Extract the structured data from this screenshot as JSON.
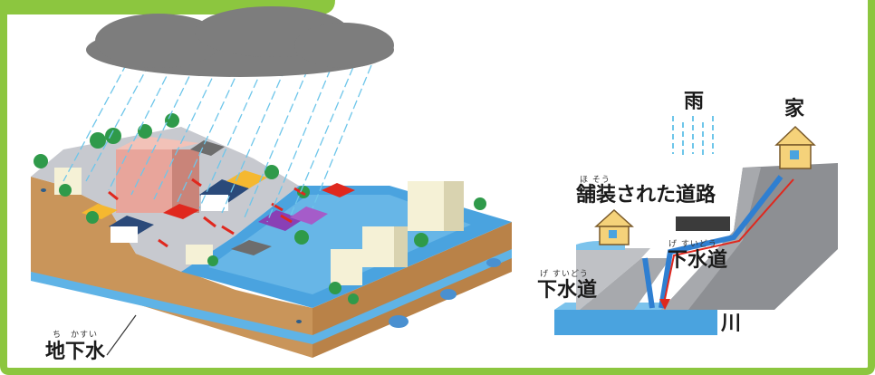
{
  "colors": {
    "frame_green": "#8cc63f",
    "cloud": "#7d7d7d",
    "rain": "#6ec6ea",
    "soil": "#c9955a",
    "water": "#4aa3df",
    "flow_arrow": "#e0281e",
    "pipe": "#2f7fd1"
  },
  "left_diagram": {
    "groundwater_label": "地下水",
    "groundwater_ruby": "ち　かすい"
  },
  "right_diagram": {
    "rain_label": "雨",
    "house_label": "家",
    "paved_road_label": "舗装された道路",
    "paved_road_ruby": "ほ そう",
    "sewer_label_upper": "下水道",
    "sewer_ruby_upper": "げ すいどう",
    "sewer_label_lower": "下水道",
    "sewer_ruby_lower": "げ すいどう",
    "river_label": "川"
  }
}
